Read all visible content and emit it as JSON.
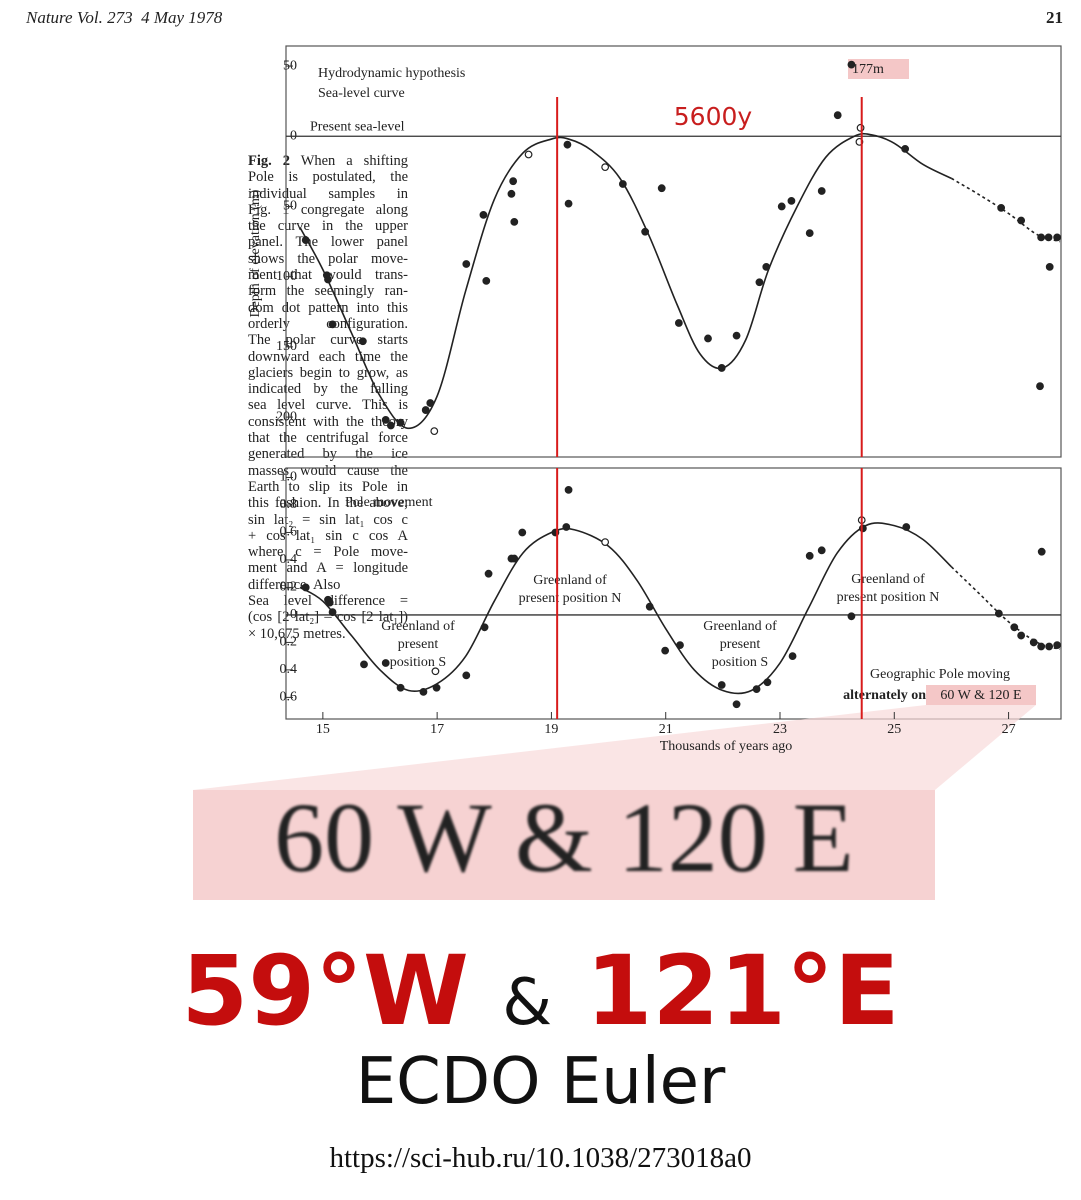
{
  "header": {
    "journal": "Nature Vol. 273  4 May 1978",
    "page": "21"
  },
  "caption": {
    "label": "Fig. 2",
    "lines": [
      "When a shifting",
      "Pole is postulated, the",
      "individual samples in",
      "Fig. 1 congregate along",
      "the curve in the upper",
      "panel. The lower panel",
      "shows the polar move-",
      "ment that would trans-",
      "form the seemingly ran-",
      "dom dot pattern into this",
      "orderly configuration.",
      "The polar curve starts",
      "downward each time the",
      "glaciers begin to grow, as",
      "indicated by the falling",
      "sea level curve. This is",
      "consistent with the theory",
      "that the centrifugal force",
      "generated by the ice",
      "masses would cause the",
      "Earth to slip its Pole in",
      "this fashion. In the above;",
      "sin lat₂ = sin lat₁ cos c",
      "+ cos lat₁ sin c cos A",
      "where c = Pole move-",
      "ment and A = longitude",
      "difference. Also",
      "Sea level difference =",
      "(cos [2 lat₂] – cos [2 lat₁])",
      "× 10,675 metres."
    ]
  },
  "chart_data": [
    {
      "type": "scatter",
      "title": "Hydrodynamic hypothesis",
      "subtitle": "Sea-level curve",
      "ylabel": "Depth of elevation (m)",
      "zero_line_label": "Present sea-level",
      "annotations": [
        "177m",
        "5600y"
      ],
      "xlim": [
        14.6,
        27.9
      ],
      "ylim": [
        -60,
        227
      ],
      "y_inverted": true,
      "yticks": [
        {
          "value": -50,
          "label": "50"
        },
        0,
        50,
        100,
        150,
        200
      ],
      "markers": [
        19.1,
        24.43
      ],
      "marker_color": "#d81b1b",
      "color": "#222222",
      "points": {
        "x": [
          14.7,
          15.07,
          15.09,
          15.17,
          15.7,
          16.1,
          16.19,
          16.36,
          16.8,
          16.88,
          16.95,
          17.51,
          17.81,
          17.86,
          18.3,
          18.35,
          18.33,
          18.6,
          19.28,
          19.3,
          19.94,
          20.25,
          20.64,
          20.93,
          21.23,
          21.74,
          21.98,
          22.24,
          22.64,
          22.76,
          23.03,
          23.2,
          23.52,
          23.73,
          24.01,
          24.25,
          24.41,
          24.39,
          25.19,
          26.87,
          27.22,
          27.57,
          27.7,
          27.85,
          27.72,
          27.55
        ],
        "values": [
          74,
          99,
          102,
          134,
          146,
          202,
          206,
          204,
          195,
          190,
          210,
          91,
          56,
          103,
          41,
          61,
          32,
          13,
          6,
          48,
          22,
          34,
          68,
          37,
          133,
          144,
          165,
          142,
          104,
          93,
          50,
          46,
          69,
          39,
          -15,
          -51,
          -6,
          4,
          9,
          51,
          60,
          72,
          72,
          72,
          93,
          178
        ],
        "hollow": [
          10,
          17,
          20,
          36,
          37
        ]
      },
      "curve": {
        "x": [
          14.6,
          15.0,
          15.5,
          16.0,
          16.5,
          17.0,
          17.5,
          18.0,
          18.5,
          19.0,
          19.3,
          19.7,
          20.2,
          20.7,
          21.2,
          21.6,
          22.0,
          22.4,
          22.8,
          23.3,
          23.8,
          24.3,
          24.6,
          25.0,
          25.5,
          26.0
        ],
        "values": [
          65,
          95,
          140,
          185,
          208,
          185,
          110,
          45,
          12,
          2,
          2,
          10,
          30,
          70,
          120,
          155,
          165,
          145,
          95,
          50,
          15,
          0,
          -1,
          5,
          20,
          30
        ]
      },
      "curve_dashed": {
        "x": [
          26.0,
          26.5,
          27.0,
          27.5,
          27.9
        ],
        "values": [
          30,
          42,
          55,
          70,
          75
        ]
      }
    },
    {
      "type": "scatter",
      "title": "Pole movement",
      "xlabel": "Thousands of years ago",
      "annotations": [
        "Greenland of\npresent position N",
        "Greenland of\npresent position N",
        "Greenland of\npresent\nposition S",
        "Greenland of\npresent\nposition S",
        "Geographic Pole moving",
        "alternately on",
        "60 W & 120 E"
      ],
      "xlim": [
        14.6,
        27.9
      ],
      "xticks": [
        15,
        17,
        19,
        21,
        23,
        25,
        27
      ],
      "ylim": [
        -0.75,
        1.04
      ],
      "yticks": [
        {
          "value": 1,
          "label": "1.0"
        },
        0.8,
        0.6,
        0.4,
        0.2,
        0,
        {
          "value": -0.2,
          "label": "0.2"
        },
        {
          "value": -0.4,
          "label": "0.4"
        },
        {
          "value": -0.6,
          "label": "0.6"
        }
      ],
      "markers": [
        19.1,
        24.43
      ],
      "marker_color": "#d81b1b",
      "color": "#222222",
      "points": {
        "x": [
          14.7,
          15.09,
          15.12,
          15.17,
          15.72,
          16.1,
          16.36,
          16.76,
          16.97,
          16.99,
          17.51,
          17.83,
          17.9,
          18.3,
          18.35,
          18.49,
          19.07,
          19.3,
          19.26,
          19.94,
          20.72,
          20.99,
          21.25,
          21.98,
          22.24,
          22.59,
          22.78,
          23.22,
          23.52,
          23.73,
          24.25,
          24.43,
          24.45,
          25.21,
          26.83,
          27.1,
          27.22,
          27.44,
          27.57,
          27.71,
          27.85,
          27.58
        ],
        "values": [
          0.2,
          0.11,
          0.09,
          0.02,
          -0.36,
          -0.35,
          -0.53,
          -0.56,
          -0.41,
          -0.53,
          -0.44,
          -0.09,
          0.3,
          0.41,
          0.41,
          0.6,
          0.6,
          0.91,
          0.64,
          0.53,
          0.06,
          -0.26,
          -0.22,
          -0.51,
          -0.65,
          -0.54,
          -0.49,
          -0.3,
          0.43,
          0.47,
          -0.01,
          0.69,
          0.63,
          0.64,
          0.01,
          -0.09,
          -0.15,
          -0.2,
          -0.23,
          -0.23,
          -0.22,
          0.46
        ],
        "hollow": [
          8,
          19,
          31
        ]
      },
      "curve": {
        "x": [
          14.6,
          15.0,
          15.5,
          16.0,
          16.5,
          17.0,
          17.5,
          18.0,
          18.5,
          19.0,
          19.4,
          20.0,
          20.5,
          21.0,
          21.5,
          22.0,
          22.5,
          23.0,
          23.5,
          24.0,
          24.5,
          25.0,
          25.5,
          26.0
        ],
        "values": [
          0.2,
          0.1,
          -0.15,
          -0.4,
          -0.55,
          -0.5,
          -0.3,
          0.1,
          0.45,
          0.6,
          0.62,
          0.5,
          0.25,
          -0.1,
          -0.4,
          -0.55,
          -0.55,
          -0.35,
          0.05,
          0.45,
          0.65,
          0.65,
          0.55,
          0.35
        ]
      },
      "curve_dashed": {
        "x": [
          26.0,
          26.5,
          27.0,
          27.5,
          27.9
        ],
        "values": [
          0.35,
          0.15,
          -0.05,
          -0.2,
          -0.25
        ]
      }
    }
  ],
  "headline": {
    "west": "59°W",
    "and": "&",
    "east": "121°E",
    "subtitle": "ECDO Euler",
    "url": "https://sci-hub.ru/10.1038/273018a0"
  }
}
